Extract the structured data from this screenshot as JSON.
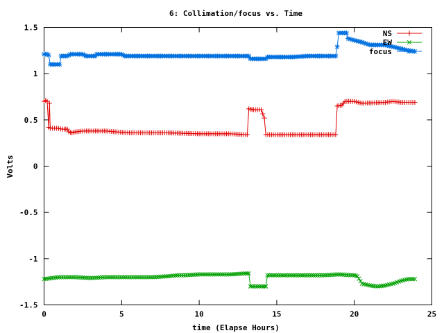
{
  "chart_data": {
    "type": "line",
    "title": "6: Collimation/focus vs. Time",
    "xlabel": "time (Elapse Hours)",
    "ylabel": "Volts",
    "xlim": [
      0,
      25
    ],
    "ylim": [
      -1.5,
      1.5
    ],
    "xticks": [
      0,
      5,
      10,
      15,
      20,
      25
    ],
    "xtick_labels": [
      "0",
      "5",
      "10",
      "15",
      "20",
      "25"
    ],
    "yticks": [
      -1.5,
      -1,
      -0.5,
      0,
      0.5,
      1,
      1.5
    ],
    "ytick_labels": [
      "-1.5",
      "-1",
      "-0.5",
      "0",
      "0.5",
      "1",
      "1.5"
    ],
    "grid": false,
    "legend_position": "top-right",
    "series": [
      {
        "name": "NS",
        "color": "#e00000",
        "marker": "+",
        "points": [
          [
            0,
            0.7
          ],
          [
            0.1,
            0.71
          ],
          [
            0.2,
            0.7
          ],
          [
            0.3,
            0.42
          ],
          [
            0.35,
            0.68
          ],
          [
            0.4,
            0.41
          ],
          [
            0.8,
            0.41
          ],
          [
            1.2,
            0.4
          ],
          [
            1.5,
            0.4
          ],
          [
            1.6,
            0.37
          ],
          [
            1.8,
            0.36
          ],
          [
            2.0,
            0.37
          ],
          [
            2.5,
            0.38
          ],
          [
            4.0,
            0.38
          ],
          [
            4.7,
            0.37
          ],
          [
            5.5,
            0.36
          ],
          [
            8.0,
            0.36
          ],
          [
            10.0,
            0.35
          ],
          [
            12.0,
            0.35
          ],
          [
            13.0,
            0.34
          ],
          [
            13.1,
            0.34
          ],
          [
            13.2,
            0.62
          ],
          [
            13.5,
            0.61
          ],
          [
            14.0,
            0.61
          ],
          [
            14.2,
            0.52
          ],
          [
            14.3,
            0.34
          ],
          [
            16.0,
            0.34
          ],
          [
            18.0,
            0.34
          ],
          [
            18.8,
            0.34
          ],
          [
            18.9,
            0.65
          ],
          [
            19.2,
            0.66
          ],
          [
            19.4,
            0.7
          ],
          [
            20.0,
            0.7
          ],
          [
            20.5,
            0.68
          ],
          [
            22.0,
            0.69
          ],
          [
            22.5,
            0.7
          ],
          [
            23.0,
            0.69
          ],
          [
            23.9,
            0.69
          ]
        ]
      },
      {
        "name": "EW",
        "color": "#00a000",
        "marker": "x",
        "points": [
          [
            0,
            -1.22
          ],
          [
            0.5,
            -1.21
          ],
          [
            1.0,
            -1.2
          ],
          [
            2.0,
            -1.2
          ],
          [
            3.0,
            -1.21
          ],
          [
            4.0,
            -1.2
          ],
          [
            5.0,
            -1.2
          ],
          [
            6.0,
            -1.2
          ],
          [
            7.0,
            -1.2
          ],
          [
            8.0,
            -1.19
          ],
          [
            8.6,
            -1.18
          ],
          [
            9.0,
            -1.18
          ],
          [
            10.0,
            -1.17
          ],
          [
            11.0,
            -1.17
          ],
          [
            12.0,
            -1.17
          ],
          [
            13.0,
            -1.16
          ],
          [
            13.2,
            -1.16
          ],
          [
            13.3,
            -1.3
          ],
          [
            14.0,
            -1.3
          ],
          [
            14.3,
            -1.3
          ],
          [
            14.4,
            -1.18
          ],
          [
            15.0,
            -1.18
          ],
          [
            17.0,
            -1.18
          ],
          [
            18.0,
            -1.18
          ],
          [
            19.0,
            -1.17
          ],
          [
            20.0,
            -1.18
          ],
          [
            20.2,
            -1.19
          ],
          [
            20.5,
            -1.27
          ],
          [
            21.0,
            -1.29
          ],
          [
            21.5,
            -1.3
          ],
          [
            22.0,
            -1.29
          ],
          [
            22.5,
            -1.27
          ],
          [
            23.0,
            -1.24
          ],
          [
            23.5,
            -1.22
          ],
          [
            23.9,
            -1.22
          ]
        ]
      },
      {
        "name": "focus",
        "color": "#0070e0",
        "marker": "*",
        "points": [
          [
            0,
            1.21
          ],
          [
            0.2,
            1.21
          ],
          [
            0.3,
            1.2
          ],
          [
            0.4,
            1.1
          ],
          [
            1.0,
            1.1
          ],
          [
            1.1,
            1.19
          ],
          [
            1.5,
            1.19
          ],
          [
            1.7,
            1.21
          ],
          [
            2.5,
            1.21
          ],
          [
            2.7,
            1.19
          ],
          [
            3.3,
            1.19
          ],
          [
            3.4,
            1.21
          ],
          [
            5.0,
            1.21
          ],
          [
            5.2,
            1.19
          ],
          [
            8.0,
            1.19
          ],
          [
            10.0,
            1.19
          ],
          [
            12.0,
            1.19
          ],
          [
            13.2,
            1.19
          ],
          [
            13.3,
            1.16
          ],
          [
            14.3,
            1.16
          ],
          [
            14.4,
            1.18
          ],
          [
            16.0,
            1.18
          ],
          [
            17.0,
            1.19
          ],
          [
            18.0,
            1.19
          ],
          [
            18.8,
            1.19
          ],
          [
            18.9,
            1.29
          ],
          [
            19.0,
            1.44
          ],
          [
            19.5,
            1.44
          ],
          [
            19.6,
            1.38
          ],
          [
            20.0,
            1.36
          ],
          [
            20.5,
            1.34
          ],
          [
            21.0,
            1.31
          ],
          [
            22.0,
            1.31
          ],
          [
            22.5,
            1.29
          ],
          [
            23.0,
            1.27
          ],
          [
            23.5,
            1.25
          ],
          [
            23.9,
            1.24
          ]
        ]
      }
    ]
  }
}
